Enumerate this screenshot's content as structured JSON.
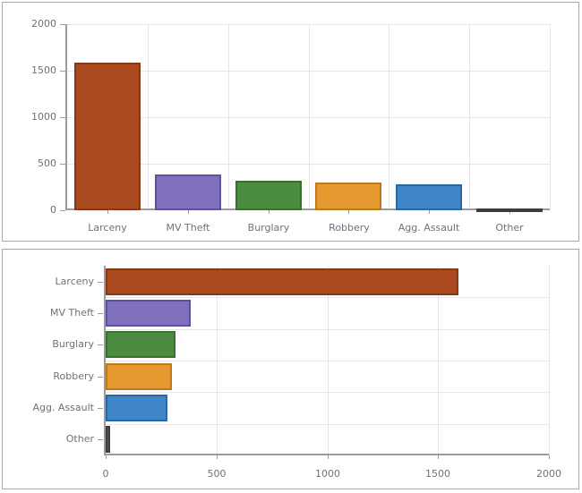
{
  "page": {
    "background": "#ffffff"
  },
  "style": {
    "panel_border": "#a8a8a8",
    "grid_color": "#e6e6e6",
    "axis_color": "#9b9b9b",
    "label_color": "#6a737c"
  },
  "palette": [
    {
      "category": "Larceny",
      "fill": "#ac4a1f",
      "stroke": "#863916"
    },
    {
      "category": "MV Theft",
      "fill": "#8070bc",
      "stroke": "#5d51a0"
    },
    {
      "category": "Burglary",
      "fill": "#4c8c40",
      "stroke": "#39702e"
    },
    {
      "category": "Robbery",
      "fill": "#e69a31",
      "stroke": "#bd7a1c"
    },
    {
      "category": "Agg. Assault",
      "fill": "#3e86c7",
      "stroke": "#2a66a5"
    },
    {
      "category": "Other",
      "fill": "#58595b",
      "stroke": "#3c3d3f"
    }
  ],
  "chart_data": [
    {
      "type": "bar",
      "orientation": "vertical",
      "title": "",
      "categories": [
        "Larceny",
        "MV Theft",
        "Burglary",
        "Robbery",
        "Agg. Assault",
        "Other"
      ],
      "values": [
        1590,
        385,
        315,
        300,
        280,
        20
      ],
      "value_axis": {
        "min": 0,
        "max": 2000,
        "ticks": [
          0,
          500,
          1000,
          1500,
          2000
        ],
        "tick_labels": [
          "0",
          "500",
          "1000",
          "1500",
          "2000"
        ]
      },
      "grid": true,
      "legend": "none"
    },
    {
      "type": "bar",
      "orientation": "horizontal",
      "title": "",
      "categories": [
        "Larceny",
        "MV Theft",
        "Burglary",
        "Robbery",
        "Agg. Assault",
        "Other"
      ],
      "values": [
        1590,
        385,
        315,
        300,
        280,
        20
      ],
      "value_axis": {
        "min": 0,
        "max": 2000,
        "ticks": [
          0,
          500,
          1000,
          1500,
          2000
        ],
        "tick_labels": [
          "0",
          "500",
          "1000",
          "1500",
          "2000"
        ]
      },
      "grid": true,
      "legend": "none"
    }
  ]
}
